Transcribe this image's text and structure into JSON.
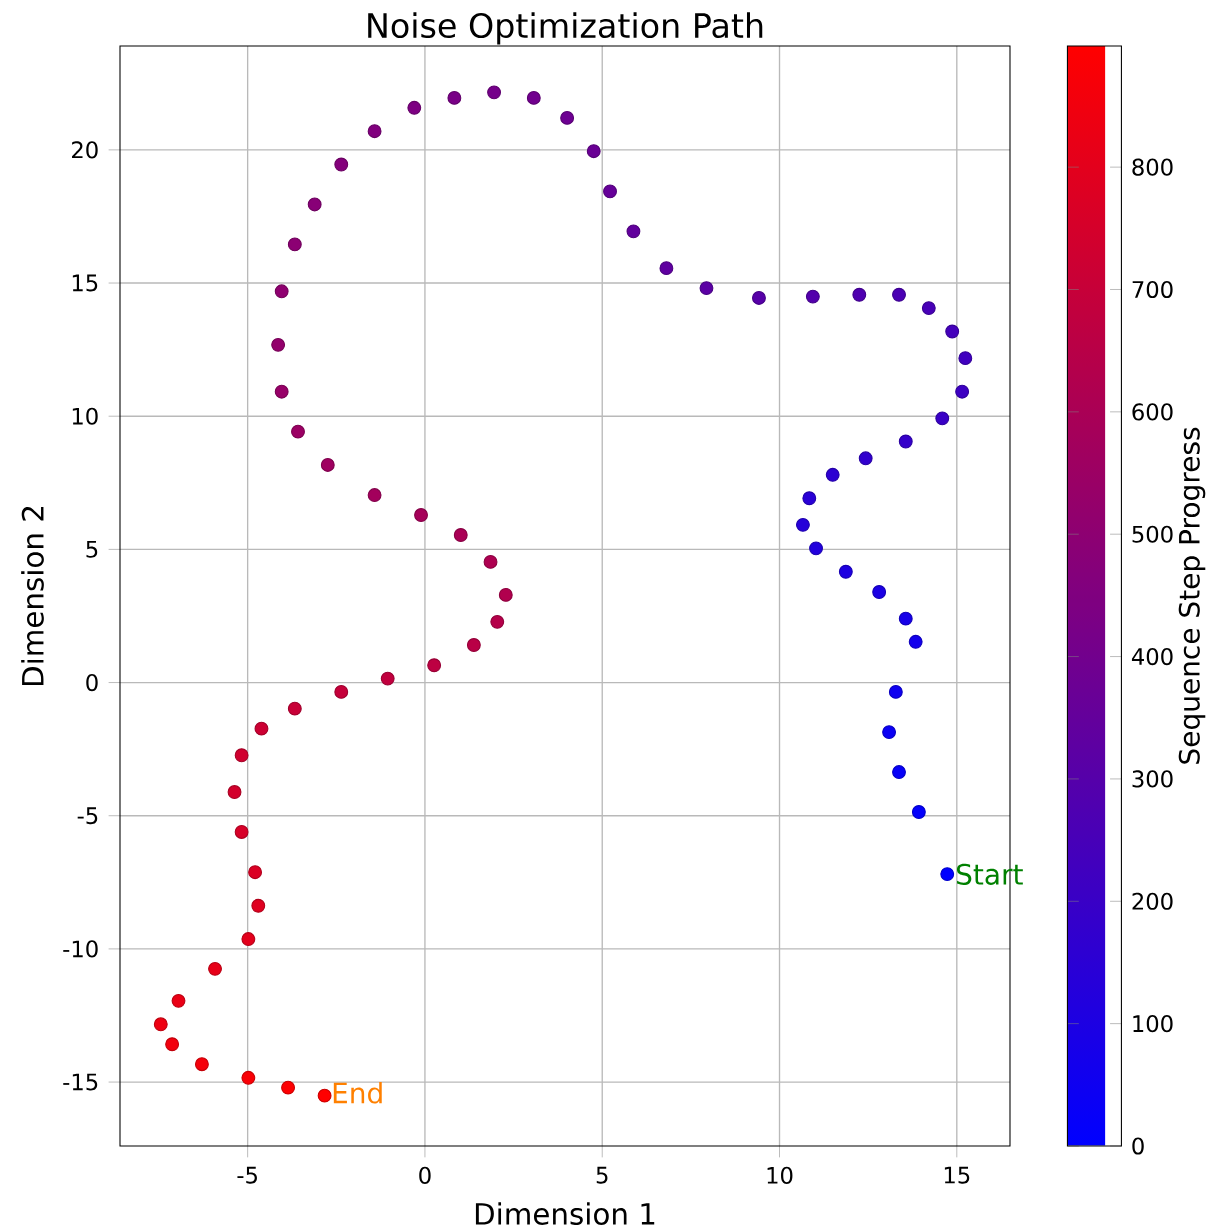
{
  "chart_data": {
    "type": "scatter",
    "title": "Noise Optimization Path",
    "xlabel": "Dimension 1",
    "ylabel": "Dimension 2",
    "clabel": "Sequence Step Progress",
    "x": [
      14.73,
      13.93,
      13.37,
      13.09,
      13.28,
      13.84,
      13.56,
      12.81,
      11.87,
      11.03,
      10.66,
      10.84,
      11.5,
      12.43,
      13.56,
      14.59,
      15.15,
      15.24,
      14.87,
      14.21,
      13.37,
      12.25,
      10.94,
      9.42,
      7.94,
      6.81,
      5.88,
      5.22,
      4.76,
      4.01,
      3.07,
      1.95,
      0.83,
      -0.3,
      -1.42,
      -2.36,
      -3.11,
      -3.67,
      -4.04,
      -4.14,
      -4.04,
      -3.58,
      -2.74,
      -1.42,
      -0.11,
      1.01,
      1.85,
      2.28,
      2.04,
      1.38,
      0.26,
      -1.05,
      -2.36,
      -3.67,
      -4.61,
      -5.17,
      -5.37,
      -5.17,
      -4.79,
      -4.7,
      -4.98,
      -5.92,
      -6.95,
      -7.45,
      -7.13,
      -6.29,
      -4.98,
      -3.86,
      -2.83
    ],
    "values": [
      -7.19,
      -4.86,
      -3.36,
      -1.86,
      -0.35,
      1.53,
      2.4,
      3.4,
      4.16,
      5.04,
      5.92,
      6.92,
      7.8,
      8.42,
      9.05,
      9.92,
      10.92,
      12.18,
      13.18,
      14.06,
      14.56,
      14.56,
      14.49,
      14.44,
      14.81,
      15.56,
      16.94,
      18.44,
      19.95,
      21.2,
      21.95,
      22.16,
      21.95,
      21.58,
      20.7,
      19.45,
      17.95,
      16.45,
      14.69,
      12.68,
      10.92,
      9.42,
      8.17,
      7.04,
      6.29,
      5.54,
      4.53,
      3.29,
      2.28,
      1.41,
      0.65,
      0.15,
      -0.35,
      -0.98,
      -1.73,
      -2.73,
      -4.11,
      -5.61,
      -7.12,
      -8.38,
      -9.63,
      -10.75,
      -11.95,
      -12.83,
      -13.58,
      -14.33,
      -14.84,
      -15.21,
      -15.51
    ],
    "cvalues": [
      0,
      13,
      26,
      40,
      53,
      66,
      79,
      93,
      106,
      119,
      132,
      145,
      159,
      172,
      185,
      198,
      212,
      225,
      238,
      251,
      264,
      278,
      291,
      304,
      317,
      331,
      344,
      357,
      370,
      383,
      397,
      410,
      423,
      436,
      450,
      463,
      476,
      489,
      502,
      516,
      529,
      542,
      555,
      569,
      582,
      595,
      608,
      621,
      635,
      648,
      661,
      674,
      688,
      701,
      714,
      727,
      740,
      754,
      767,
      780,
      793,
      807,
      820,
      833,
      846,
      859,
      873,
      886,
      899
    ],
    "xlim": [
      -8.6,
      16.5
    ],
    "ylim": [
      -17.4,
      23.9
    ],
    "xticks": [
      -5,
      0,
      5,
      10,
      15
    ],
    "yticks": [
      -15,
      -10,
      -5,
      0,
      5,
      10,
      15,
      20
    ],
    "clim": [
      0,
      899
    ],
    "cticks": [
      0,
      100,
      200,
      300,
      400,
      500,
      600,
      700,
      800
    ],
    "grid": true,
    "marker": "circle",
    "annotations": [
      {
        "text": "Start",
        "x": 14.9,
        "y": -7.2
      },
      {
        "text": "End",
        "x": -2.7,
        "y": -15.4
      }
    ]
  }
}
